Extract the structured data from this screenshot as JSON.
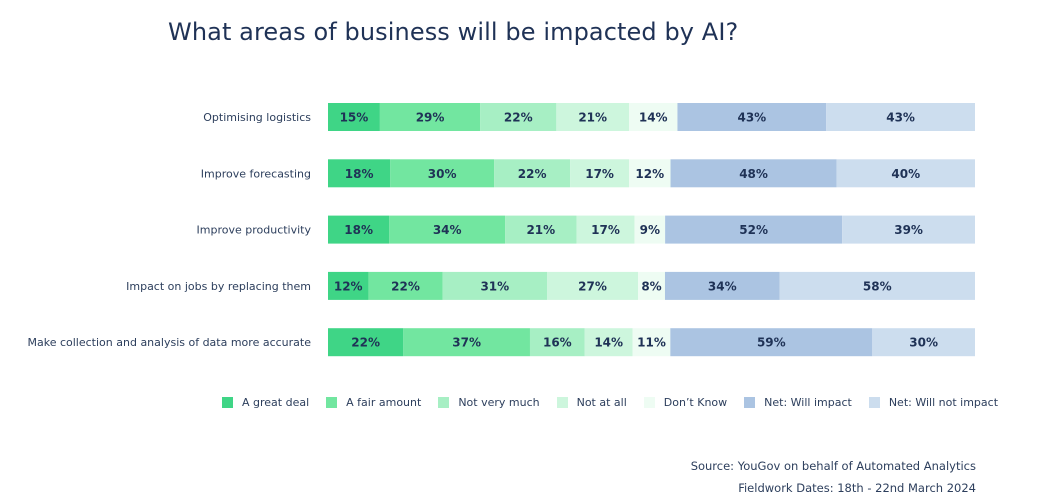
{
  "title": "What areas of business will be impacted by AI?",
  "colors": {
    "A great deal": "#3fd586",
    "A fair amount": "#72e6a0",
    "Not very much": "#a7efc4",
    "Not at all": "#cdf6dd",
    "Don't Know": "#eefcf3",
    "Net: Will impact": "#abc4e2",
    "Net: Will not impact": "#ccddee"
  },
  "chart_data": {
    "type": "bar",
    "orientation": "horizontal-stacked",
    "categories": [
      "Optimising logistics",
      "Improve forecasting",
      "Improve productivity",
      "Impact on jobs by replacing them",
      "Make collection and analysis of data more accurate"
    ],
    "series": [
      {
        "name": "A great deal",
        "values": [
          15,
          18,
          18,
          12,
          22
        ],
        "labels": [
          "15%",
          "18%",
          "18%",
          "12%",
          "22%"
        ]
      },
      {
        "name": "A fair amount",
        "values": [
          29,
          30,
          34,
          22,
          37
        ],
        "labels": [
          "29%",
          "30%",
          "34%",
          "22%",
          "37%"
        ]
      },
      {
        "name": "Not very much",
        "values": [
          22,
          22,
          21,
          31,
          16
        ],
        "labels": [
          "22%",
          "22%",
          "21%",
          "31%",
          "16%"
        ]
      },
      {
        "name": "Not at all",
        "values": [
          21,
          17,
          17,
          27,
          14
        ],
        "labels": [
          "21%",
          "17%",
          "17%",
          "27%",
          "14%"
        ]
      },
      {
        "name": "Don’t Know",
        "values": [
          14,
          12,
          9,
          8,
          11
        ],
        "labels": [
          "14%",
          "12%",
          "9%",
          "8%",
          "11%"
        ]
      },
      {
        "name": "Net: Will impact",
        "values": [
          43,
          48,
          52,
          34,
          59
        ],
        "labels": [
          "43%",
          "48%",
          "52%",
          "34%",
          "59%"
        ]
      },
      {
        "name": "Net: Will not impact",
        "values": [
          43,
          40,
          39,
          58,
          30
        ],
        "labels": [
          "43%",
          "40%",
          "39%",
          "58%",
          "30%"
        ]
      }
    ],
    "legend_position": "bottom",
    "grid": false
  },
  "source": {
    "line1": "Source: YouGov on behalf of Automated Analytics",
    "line2": "Fieldwork Dates: 18th - 22nd March 2024"
  }
}
